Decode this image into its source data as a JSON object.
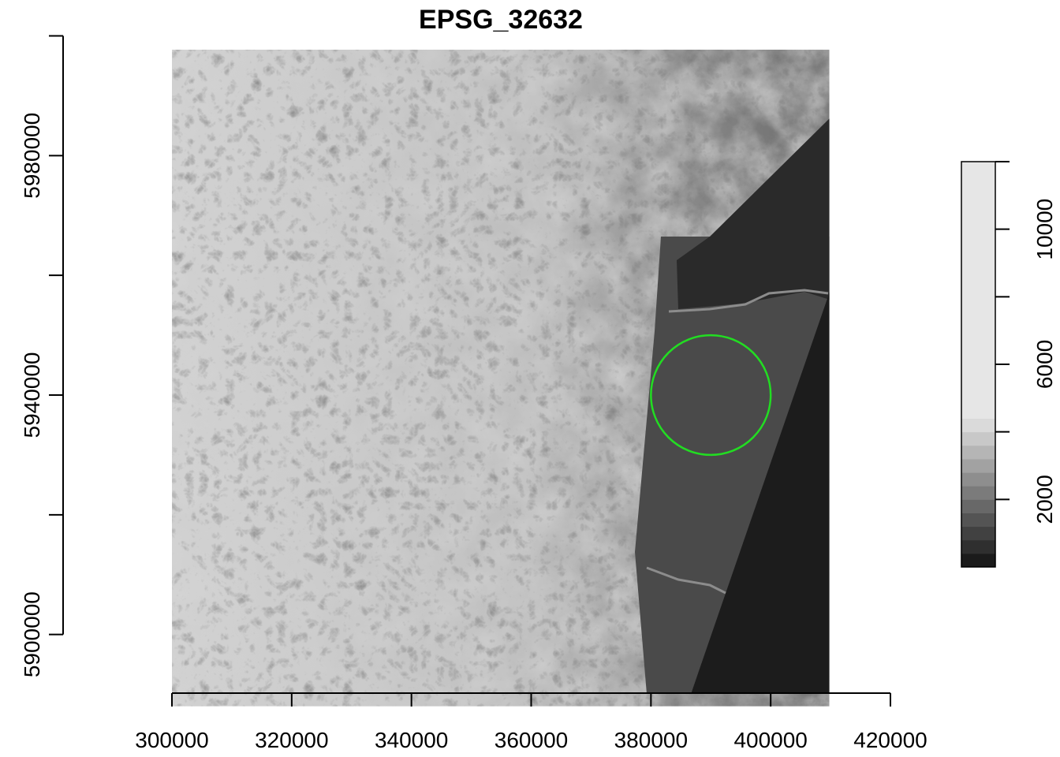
{
  "chart_data": {
    "type": "raster_map",
    "title": "EPSG_32632",
    "xlabel": "",
    "ylabel": "",
    "xlim": [
      300000,
      420000
    ],
    "ylim": [
      5888000,
      5998000
    ],
    "x_ticks": [
      300000,
      320000,
      340000,
      360000,
      380000,
      400000,
      420000
    ],
    "y_ticks": [
      5900000,
      5920000,
      5940000,
      5960000,
      5980000,
      6000000
    ],
    "y_tick_labels": [
      5900000,
      5940000,
      5980000
    ],
    "raster_extent": {
      "xmin": 300000,
      "xmax": 409800,
      "ymin": 5888000,
      "ymax": 5997700
    },
    "circle": {
      "center": [
        390000,
        5940000
      ],
      "radius": 10000,
      "color": "#22dd22"
    },
    "legend": {
      "placement": "right",
      "range": [
        0,
        12000
      ],
      "ticks": [
        2000,
        6000,
        10000
      ],
      "minor_ticks": [
        4000,
        8000,
        12000
      ],
      "bins": [
        {
          "from": 0,
          "to": 400,
          "color": "#1b1b1b"
        },
        {
          "from": 400,
          "to": 800,
          "color": "#2f2f2f"
        },
        {
          "from": 800,
          "to": 1200,
          "color": "#414141"
        },
        {
          "from": 1200,
          "to": 1600,
          "color": "#545454"
        },
        {
          "from": 1600,
          "to": 2000,
          "color": "#686868"
        },
        {
          "from": 2000,
          "to": 2400,
          "color": "#7b7b7b"
        },
        {
          "from": 2400,
          "to": 2800,
          "color": "#8e8e8e"
        },
        {
          "from": 2800,
          "to": 3200,
          "color": "#a2a2a2"
        },
        {
          "from": 3200,
          "to": 3600,
          "color": "#b5b5b5"
        },
        {
          "from": 3600,
          "to": 4000,
          "color": "#c8c8c8"
        },
        {
          "from": 4000,
          "to": 4400,
          "color": "#dadada"
        },
        {
          "from": 4400,
          "to": 12000,
          "color": "#e6e6e6"
        }
      ]
    }
  }
}
